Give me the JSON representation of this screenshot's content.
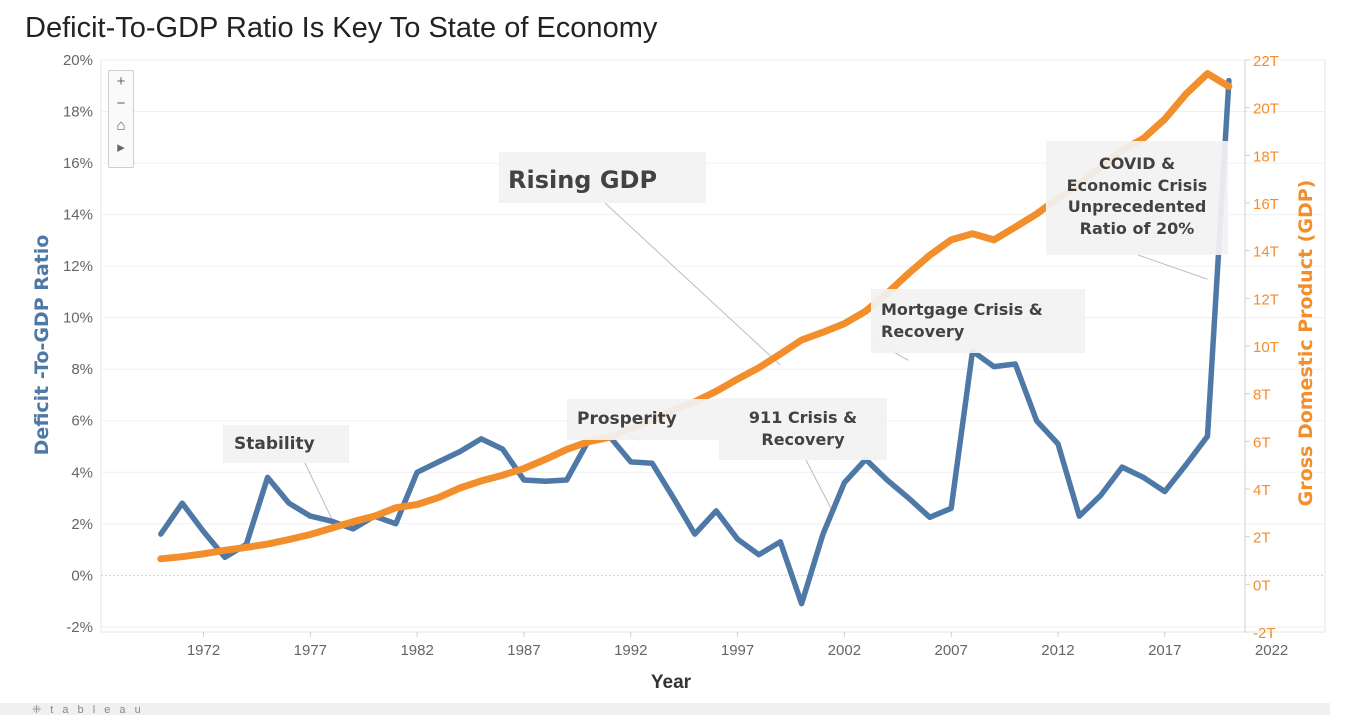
{
  "title": "Deficit-To-GDP Ratio Is Key To State of Economy",
  "zoom_controls": {
    "zoom_in": "+",
    "zoom_out": "−",
    "home": "⌂",
    "pan": "▸"
  },
  "footer_text": "⁜ t a b l e a u",
  "chart_data": {
    "type": "line",
    "xlabel": "Year",
    "x_ticks": [
      1972,
      1977,
      1982,
      1987,
      1992,
      1997,
      2002,
      2007,
      2012,
      2017,
      2022
    ],
    "xlim": [
      1967.2,
      2024.5
    ],
    "y_left": {
      "label": "Deficit -To-GDP Ratio",
      "ylim": [
        -2.2,
        20.0
      ],
      "ticks": [
        -2,
        0,
        2,
        4,
        6,
        8,
        10,
        12,
        14,
        16,
        18,
        20
      ],
      "tick_labels": [
        "-2%",
        "0%",
        "2%",
        "4%",
        "6%",
        "8%",
        "10%",
        "12%",
        "14%",
        "16%",
        "18%",
        "20%"
      ],
      "color": "#4e79a7"
    },
    "y_right": {
      "label": "Gross Domestic Product (GDP)",
      "ylim": [
        -2.0,
        22.0
      ],
      "ticks": [
        -2,
        0,
        2,
        4,
        6,
        8,
        10,
        12,
        14,
        16,
        18,
        20,
        22
      ],
      "tick_labels": [
        "-2T",
        "0T",
        "2T",
        "4T",
        "6T",
        "8T",
        "10T",
        "12T",
        "14T",
        "16T",
        "18T",
        "20T",
        "22T"
      ],
      "color": "#f28e2b"
    },
    "grid": true,
    "series": [
      {
        "axis": "left",
        "color": "#4e79a7",
        "x": [
          1970,
          1971,
          1972,
          1973,
          1974,
          1975,
          1976,
          1977,
          1978,
          1979,
          1980,
          1981,
          1982,
          1983,
          1984,
          1985,
          1986,
          1987,
          1988,
          1989,
          1990,
          1991,
          1992,
          1993,
          1994,
          1995,
          1996,
          1997,
          1998,
          1999,
          2000,
          2001,
          2002,
          2003,
          2004,
          2005,
          2006,
          2007,
          2008,
          2009,
          2010,
          2011,
          2012,
          2013,
          2014,
          2015,
          2016,
          2017,
          2018,
          2019,
          2020
        ],
        "values": [
          1.6,
          2.8,
          1.7,
          0.7,
          1.2,
          3.8,
          2.8,
          2.3,
          2.1,
          1.8,
          2.3,
          2.0,
          4.0,
          4.4,
          4.8,
          5.3,
          4.9,
          3.7,
          3.65,
          3.7,
          5.2,
          5.4,
          4.4,
          4.35,
          3.0,
          1.6,
          2.5,
          1.4,
          0.8,
          1.3,
          -1.1,
          1.6,
          3.6,
          4.5,
          3.7,
          3.0,
          2.25,
          2.6,
          8.7,
          8.1,
          8.2,
          6.0,
          5.1,
          2.3,
          3.1,
          4.2,
          3.8,
          3.25,
          4.3,
          5.4,
          19.2
        ]
      },
      {
        "axis": "right",
        "color": "#f28e2b",
        "x": [
          1970,
          1971,
          1972,
          1973,
          1974,
          1975,
          1976,
          1977,
          1978,
          1979,
          1980,
          1981,
          1982,
          1983,
          1984,
          1985,
          1986,
          1987,
          1988,
          1989,
          1990,
          1991,
          1992,
          1993,
          1994,
          1995,
          1996,
          1997,
          1998,
          1999,
          2000,
          2001,
          2002,
          2003,
          2004,
          2005,
          2006,
          2007,
          2008,
          2009,
          2010,
          2011,
          2012,
          2013,
          2014,
          2015,
          2016,
          2017,
          2018,
          2019,
          2020
        ],
        "values": [
          1.07,
          1.16,
          1.28,
          1.43,
          1.55,
          1.69,
          1.88,
          2.09,
          2.36,
          2.63,
          2.86,
          3.21,
          3.35,
          3.64,
          4.04,
          4.34,
          4.58,
          4.86,
          5.24,
          5.66,
          5.98,
          6.17,
          6.54,
          6.88,
          7.31,
          7.66,
          8.1,
          8.61,
          9.09,
          9.66,
          10.25,
          10.58,
          10.94,
          11.46,
          12.21,
          13.04,
          13.81,
          14.45,
          14.71,
          14.45,
          14.99,
          15.54,
          16.2,
          16.78,
          17.52,
          18.22,
          18.71,
          19.52,
          20.58,
          21.43,
          20.89
        ]
      }
    ],
    "annotations": [
      {
        "text": "Stability",
        "x": 1978,
        "y": 2.2
      },
      {
        "text": "Rising GDP",
        "x": 1999,
        "y": 9.2
      },
      {
        "text": "Prosperity",
        "x": 1991,
        "y": 5.8
      },
      {
        "text": "911 Crisis & Recovery",
        "x": 2001.5,
        "y": 2.4
      },
      {
        "text": "Mortgage Crisis & Recovery",
        "x": 2005,
        "y": 9.4
      },
      {
        "text": "COVID & Economic Crisis Unprecedented Ratio of 20%",
        "x": 2019,
        "y": 12.8
      }
    ]
  },
  "annotations_text": {
    "stability": "Stability",
    "rising_gdp": "Rising GDP",
    "prosperity": "Prosperity",
    "crisis_911": [
      "911 Crisis &",
      "Recovery"
    ],
    "mortgage": [
      "Mortgage Crisis &",
      "Recovery"
    ],
    "covid": [
      "COVID &",
      "Economic Crisis",
      "Unprecedented",
      "Ratio of 20%"
    ]
  }
}
